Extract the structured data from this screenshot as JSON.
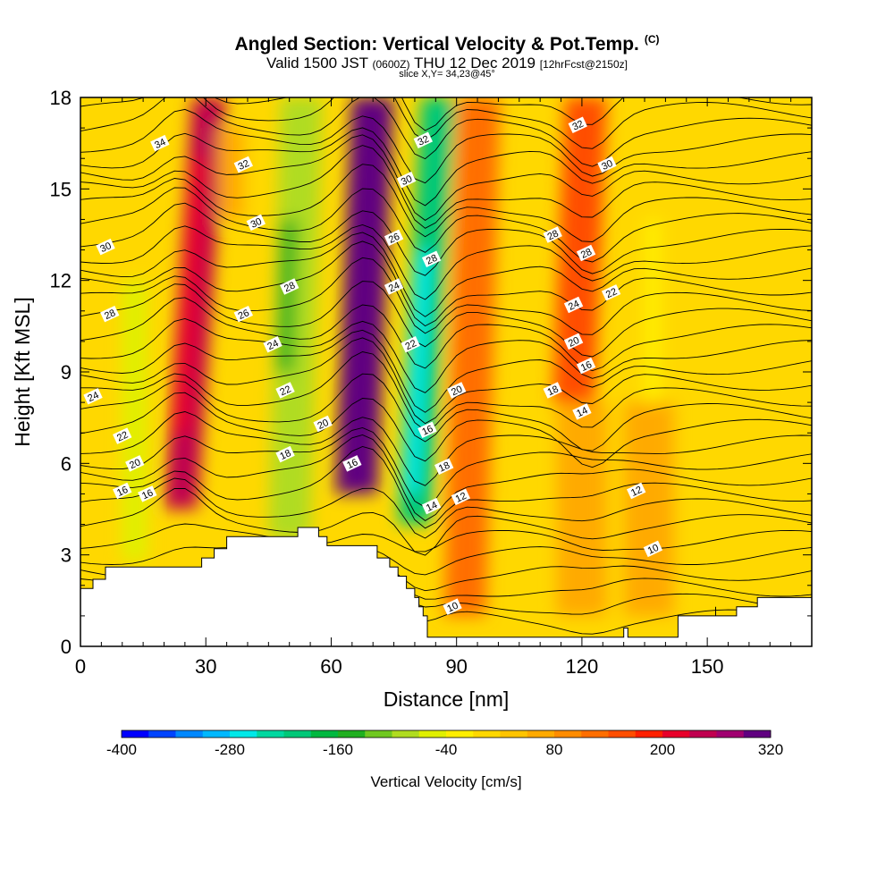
{
  "header": {
    "title": "Angled Section: Vertical Velocity & Pot.Temp.",
    "title_unit": "(C)",
    "valid_prefix": "Valid 1500 JST",
    "valid_utc": "(0600Z)",
    "valid_date": "THU 12 Dec 2019",
    "forecast": "[12hrFcst@2150z]",
    "slice": "slice X,Y= 34,23@45°"
  },
  "chart_data": {
    "type": "heatmap",
    "xlabel": "Distance [nm]",
    "ylabel": "Height [Kft MSL]",
    "xlim": [
      0,
      175
    ],
    "ylim": [
      0,
      18
    ],
    "x_ticks": [
      0,
      30,
      60,
      90,
      120,
      150
    ],
    "y_ticks": [
      0,
      3,
      6,
      9,
      12,
      15,
      18
    ],
    "colorbar": {
      "label": "Vertical Velocity [cm/s]",
      "tick_labels": [
        "-400",
        "-280",
        "-160",
        "-40",
        "80",
        "200",
        "320"
      ],
      "levels": [
        -400,
        -370,
        -340,
        -310,
        -280,
        -250,
        -220,
        -190,
        -160,
        -130,
        -100,
        -70,
        -40,
        -10,
        20,
        50,
        80,
        110,
        140,
        170,
        200,
        230,
        260,
        290,
        320
      ],
      "colors": [
        "#0000ff",
        "#0044ff",
        "#0088ff",
        "#00b8ff",
        "#00e8e8",
        "#00d8a0",
        "#00c878",
        "#00b840",
        "#20b020",
        "#70c820",
        "#b0dc20",
        "#e0f000",
        "#ffee00",
        "#ffd800",
        "#ffc400",
        "#ffaa00",
        "#ff8c00",
        "#ff6e00",
        "#ff4e00",
        "#ff2000",
        "#e8002a",
        "#c00050",
        "#a00070",
        "#600080"
      ]
    },
    "background_value": -10,
    "velocity_cells": [
      {
        "x": 24,
        "y_bottom": 4.5,
        "y_top": 18,
        "half_width": 4,
        "value": 240,
        "lean": 0.5
      },
      {
        "x": 24,
        "y_bottom": 7,
        "y_top": 16,
        "half_width": 2,
        "value": 200,
        "lean": 0.5
      },
      {
        "x": 66,
        "y_bottom": 5,
        "y_top": 18,
        "half_width": 5,
        "value": 320,
        "lean": 0.3
      },
      {
        "x": 66,
        "y_bottom": 8,
        "y_top": 18,
        "half_width": 2,
        "value": 300,
        "lean": 0.3
      },
      {
        "x": 50,
        "y_bottom": 3.5,
        "y_top": 18,
        "half_width": 5,
        "value": -100,
        "lean": 0.2
      },
      {
        "x": 49,
        "y_bottom": 9,
        "y_top": 14,
        "half_width": 2,
        "value": -160,
        "lean": 0.2
      },
      {
        "x": 80,
        "y_bottom": 4,
        "y_top": 18,
        "half_width": 4,
        "value": -200,
        "lean": 0.4
      },
      {
        "x": 79,
        "y_bottom": 5,
        "y_top": 13,
        "half_width": 2,
        "value": -280,
        "lean": 0.4
      },
      {
        "x": 92,
        "y_bottom": 1,
        "y_top": 18,
        "half_width": 5,
        "value": 110,
        "lean": 0.2
      },
      {
        "x": 118,
        "y_bottom": 8,
        "y_top": 18,
        "half_width": 5,
        "value": 140,
        "lean": 0.3
      },
      {
        "x": 120,
        "y_bottom": 1,
        "y_top": 8,
        "half_width": 6,
        "value": 50,
        "lean": 0
      },
      {
        "x": 13,
        "y_bottom": 2.8,
        "y_top": 12,
        "half_width": 3,
        "value": -70,
        "lean": 0
      },
      {
        "x": 136,
        "y_bottom": 1,
        "y_top": 8,
        "half_width": 6,
        "value": 50,
        "lean": 0
      },
      {
        "x": 137,
        "y_bottom": 8,
        "y_top": 14,
        "half_width": 2,
        "value": -40,
        "lean": 0
      },
      {
        "x": 36,
        "y_bottom": 14,
        "y_top": 17,
        "half_width": 3,
        "value": 50,
        "lean": 0
      }
    ],
    "terrain": [
      [
        0,
        1.9
      ],
      [
        3,
        1.9
      ],
      [
        3,
        2.2
      ],
      [
        6,
        2.2
      ],
      [
        6,
        2.6
      ],
      [
        29,
        2.6
      ],
      [
        29,
        2.9
      ],
      [
        32,
        2.9
      ],
      [
        32,
        3.2
      ],
      [
        35,
        3.2
      ],
      [
        35,
        3.6
      ],
      [
        52,
        3.6
      ],
      [
        52,
        3.9
      ],
      [
        57,
        3.9
      ],
      [
        57,
        3.6
      ],
      [
        59,
        3.6
      ],
      [
        59,
        3.3
      ],
      [
        71,
        3.3
      ],
      [
        71,
        2.9
      ],
      [
        74,
        2.9
      ],
      [
        74,
        2.6
      ],
      [
        76,
        2.6
      ],
      [
        76,
        2.3
      ],
      [
        78,
        2.3
      ],
      [
        78,
        1.9
      ],
      [
        80,
        1.9
      ],
      [
        80,
        1.6
      ],
      [
        81,
        1.6
      ],
      [
        81,
        1.3
      ],
      [
        82,
        1.3
      ],
      [
        82,
        1.0
      ],
      [
        83,
        1.0
      ],
      [
        83,
        0.3
      ],
      [
        130,
        0.3
      ],
      [
        130,
        0.6
      ],
      [
        131,
        0.6
      ],
      [
        131,
        0.3
      ],
      [
        143,
        0.3
      ],
      [
        143,
        1.0
      ],
      [
        152,
        1.0
      ],
      [
        152,
        1.3
      ],
      [
        152,
        1.0
      ],
      [
        157,
        1.0
      ],
      [
        157,
        1.3
      ],
      [
        162,
        1.3
      ],
      [
        162,
        1.6
      ],
      [
        175,
        1.6
      ]
    ],
    "theta_labels": [
      {
        "x": 19,
        "y": 16.5,
        "text": "34"
      },
      {
        "x": 39,
        "y": 15.8,
        "text": "32"
      },
      {
        "x": 42,
        "y": 13.9,
        "text": "30"
      },
      {
        "x": 6,
        "y": 13.1,
        "text": "30"
      },
      {
        "x": 50,
        "y": 11.8,
        "text": "28"
      },
      {
        "x": 7,
        "y": 10.9,
        "text": "28"
      },
      {
        "x": 39,
        "y": 10.9,
        "text": "26"
      },
      {
        "x": 46,
        "y": 9.9,
        "text": "24"
      },
      {
        "x": 49,
        "y": 8.4,
        "text": "22"
      },
      {
        "x": 3,
        "y": 8.2,
        "text": "24"
      },
      {
        "x": 58,
        "y": 7.3,
        "text": "20"
      },
      {
        "x": 49,
        "y": 6.3,
        "text": "18"
      },
      {
        "x": 10,
        "y": 6.9,
        "text": "22"
      },
      {
        "x": 13,
        "y": 6.0,
        "text": "20"
      },
      {
        "x": 10,
        "y": 5.1,
        "text": "16"
      },
      {
        "x": 16,
        "y": 5.0,
        "text": "16"
      },
      {
        "x": 65,
        "y": 6.0,
        "text": "16"
      },
      {
        "x": 82,
        "y": 16.6,
        "text": "32"
      },
      {
        "x": 78,
        "y": 15.3,
        "text": "30"
      },
      {
        "x": 75,
        "y": 13.4,
        "text": "26"
      },
      {
        "x": 84,
        "y": 12.7,
        "text": "28"
      },
      {
        "x": 75,
        "y": 11.8,
        "text": "24"
      },
      {
        "x": 79,
        "y": 9.9,
        "text": "22"
      },
      {
        "x": 90,
        "y": 8.4,
        "text": "20"
      },
      {
        "x": 83,
        "y": 7.1,
        "text": "16"
      },
      {
        "x": 87,
        "y": 5.9,
        "text": "18"
      },
      {
        "x": 91,
        "y": 4.9,
        "text": "12"
      },
      {
        "x": 84,
        "y": 4.6,
        "text": "14"
      },
      {
        "x": 89,
        "y": 1.3,
        "text": "10"
      },
      {
        "x": 119,
        "y": 17.1,
        "text": "32"
      },
      {
        "x": 126,
        "y": 15.8,
        "text": "30"
      },
      {
        "x": 113,
        "y": 13.5,
        "text": "28"
      },
      {
        "x": 121,
        "y": 12.9,
        "text": "28"
      },
      {
        "x": 127,
        "y": 11.6,
        "text": "22"
      },
      {
        "x": 118,
        "y": 11.2,
        "text": "24"
      },
      {
        "x": 118,
        "y": 10.0,
        "text": "20"
      },
      {
        "x": 121,
        "y": 9.2,
        "text": "16"
      },
      {
        "x": 113,
        "y": 8.4,
        "text": "18"
      },
      {
        "x": 120,
        "y": 7.7,
        "text": "14"
      },
      {
        "x": 133,
        "y": 5.1,
        "text": "12"
      },
      {
        "x": 137,
        "y": 3.2,
        "text": "10"
      }
    ]
  }
}
